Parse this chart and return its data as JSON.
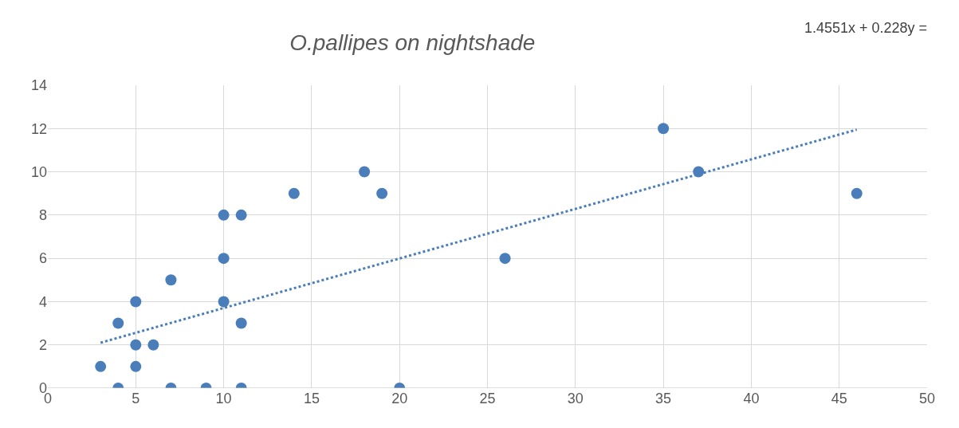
{
  "chart_data": {
    "type": "scatter",
    "title": "O.pallipes on nightshade",
    "annotations": [
      "1.4551x + 0.228y ="
    ],
    "series": [
      {
        "color": "#4a7ebb",
        "marker": "circle",
        "x": [
          3,
          4,
          4,
          5,
          5,
          5,
          6,
          7,
          7,
          9,
          10,
          10,
          10,
          11,
          11,
          11,
          14,
          18,
          19,
          20,
          26,
          35,
          37,
          46
        ],
        "values": [
          1,
          3,
          0,
          4,
          2,
          1,
          2,
          5,
          0,
          0,
          8,
          6,
          4,
          8,
          3,
          0,
          9,
          10,
          9,
          0,
          6,
          12,
          10,
          9
        ]
      },
      {
        "type": "line",
        "color": "#4a7ebb",
        "line_style": "dotted",
        "marker": "none",
        "x": [
          3,
          46
        ],
        "values": [
          2.1,
          11.95
        ]
      }
    ],
    "xlim": [
      0,
      50
    ],
    "xticks": [
      0,
      5,
      10,
      15,
      20,
      25,
      30,
      35,
      40,
      45,
      50
    ],
    "ylim": [
      0,
      14
    ],
    "yticks": [
      0,
      2,
      4,
      6,
      8,
      10,
      12,
      14
    ],
    "grid": true
  }
}
